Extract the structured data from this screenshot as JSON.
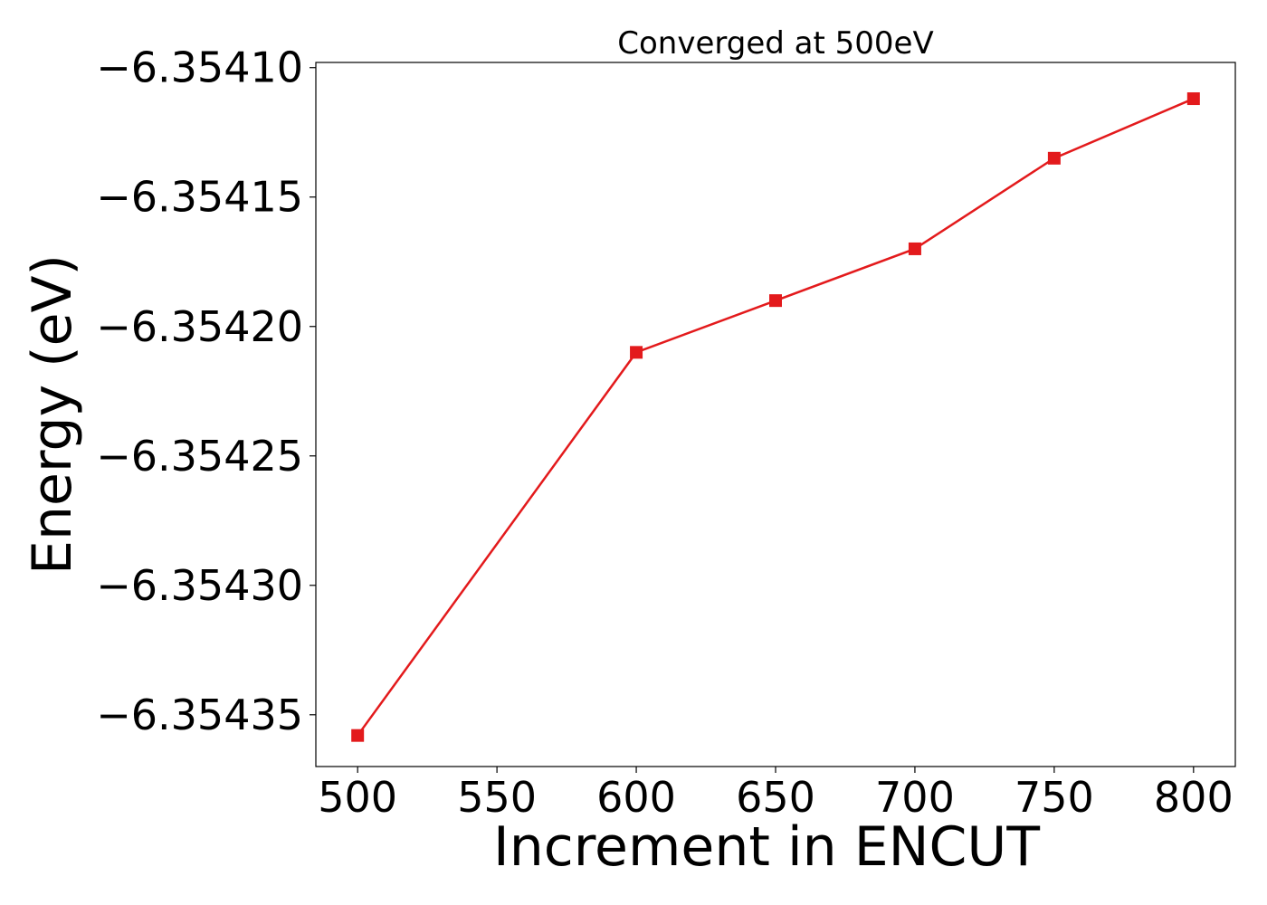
{
  "chart_data": {
    "type": "line",
    "title": "Converged at 500eV",
    "xlabel": "Increment in ENCUT",
    "ylabel": "Energy (eV)",
    "x": [
      500,
      600,
      650,
      700,
      750,
      800
    ],
    "series": [
      {
        "values": [
          -6.354358,
          -6.35421,
          -6.35419,
          -6.35417,
          -6.354135,
          -6.354112
        ],
        "color": "#e31a1c",
        "marker": "square"
      }
    ],
    "xlim": [
      485,
      815
    ],
    "ylim": [
      -6.35437,
      -6.354098
    ],
    "xticks": [
      500,
      550,
      600,
      650,
      700,
      750,
      800
    ],
    "xtick_labels": [
      "500",
      "550",
      "600",
      "650",
      "700",
      "750",
      "800"
    ],
    "yticks": [
      -6.35435,
      -6.3543,
      -6.35425,
      -6.3542,
      -6.35415,
      -6.3541
    ],
    "ytick_labels": [
      "−6.35435",
      "−6.35430",
      "−6.35425",
      "−6.35420",
      "−6.35415",
      "−6.35410"
    ],
    "grid": false,
    "legend": "none"
  }
}
